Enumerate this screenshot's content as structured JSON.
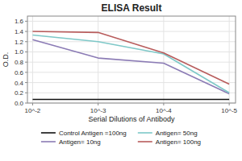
{
  "chart_data": {
    "type": "line",
    "title": "ELISA Result",
    "xlabel": "Serial Dilutions of Antibody",
    "ylabel": "O.D.",
    "x": [
      0.01,
      0.001,
      0.0001,
      1e-05
    ],
    "series": [
      {
        "name": "Control Antigen =100ng",
        "color": "#111111",
        "values": [
          0.07,
          0.07,
          0.07,
          0.07
        ]
      },
      {
        "name": "Antigen= 10ng",
        "color": "#8b7bb5",
        "values": [
          1.24,
          0.88,
          0.78,
          0.18
        ]
      },
      {
        "name": "Antigen= 50ng",
        "color": "#7ec8c8",
        "values": [
          1.33,
          1.2,
          0.96,
          0.2
        ]
      },
      {
        "name": "Antigen= 100ng",
        "color": "#b85c5c",
        "values": [
          1.4,
          1.38,
          0.98,
          0.37
        ]
      }
    ],
    "log": "x",
    "xlim": [
      0.012,
      8e-06
    ],
    "xticks": [
      {
        "value": 0.01,
        "label": "10^-2"
      },
      {
        "value": 0.001,
        "label": "10^-3"
      },
      {
        "value": 0.0001,
        "label": "10^-4"
      },
      {
        "value": 1e-05,
        "label": "10^-5"
      }
    ],
    "ylim": [
      0,
      1.7
    ],
    "yticks": [
      {
        "value": 0,
        "label": "0.0"
      },
      0.2,
      0.4,
      0.6,
      0.8,
      {
        "value": 1.0,
        "label": "1.0"
      },
      1.2,
      1.4,
      1.6
    ],
    "grid": true,
    "legend": "bottom"
  }
}
